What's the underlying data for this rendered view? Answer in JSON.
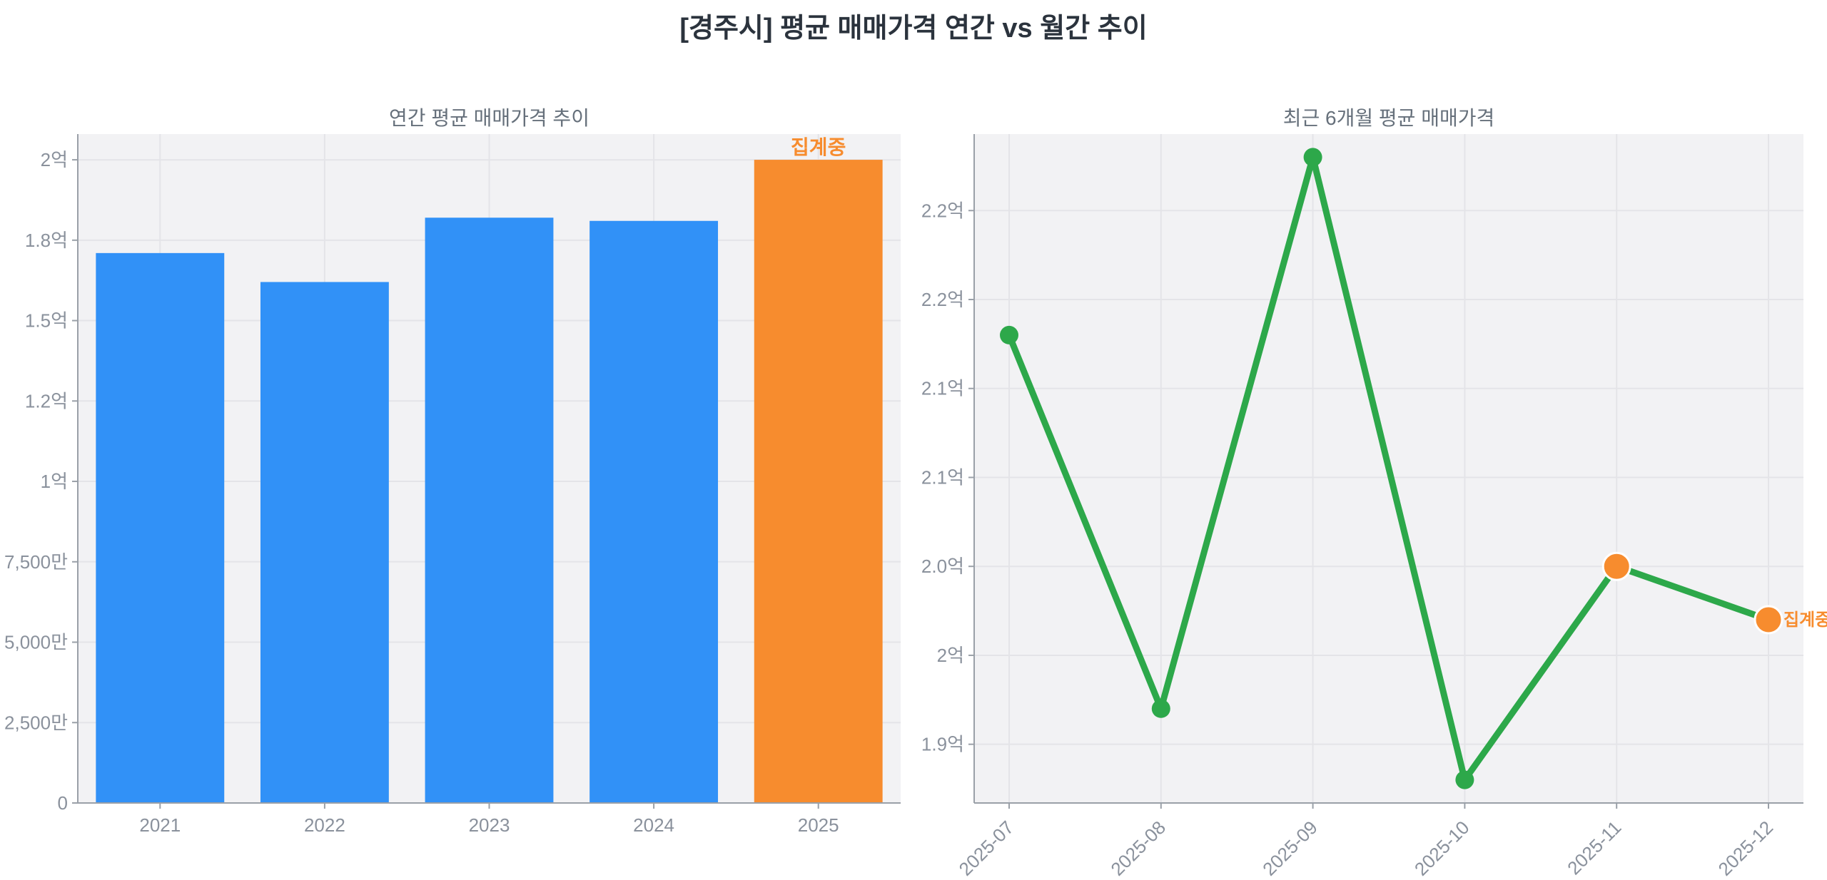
{
  "page": {
    "title": "[경주시] 평균 매매가격 연간 vs 월간 추이"
  },
  "colors": {
    "main_title_text": "#2b333d",
    "panel_title_text": "#66707b",
    "plot_background": "#f2f2f4",
    "grid": "#e4e4e8",
    "axis": "#9aa0a8",
    "tick_text": "#8a919c",
    "bar_blue": "#3191f7",
    "accent_orange": "#f78c2e",
    "line_green": "#2da84a"
  },
  "annotations": {
    "in_progress_label": "집계중"
  },
  "chart_data": [
    {
      "id": "annual",
      "type": "bar",
      "title": "연간 평균 매매가격 추이",
      "categories": [
        "2021",
        "2022",
        "2023",
        "2024",
        "2025"
      ],
      "values": [
        1.71,
        1.62,
        1.82,
        1.81,
        2.0
      ],
      "value_unit": "억원 (1억 = 100,000,000 KRW)",
      "bar_colors": [
        "#3191f7",
        "#3191f7",
        "#3191f7",
        "#3191f7",
        "#f78c2e"
      ],
      "annotation": {
        "text": "집계중",
        "category_index": 4,
        "color": "#f78c2e"
      },
      "xlabel": "",
      "ylabel": "",
      "ylim": [
        0,
        2.08
      ],
      "yticks": [
        {
          "value": 0,
          "label": "0"
        },
        {
          "value": 0.25,
          "label": "2,500만"
        },
        {
          "value": 0.5,
          "label": "5,000만"
        },
        {
          "value": 0.75,
          "label": "7,500만"
        },
        {
          "value": 1.0,
          "label": "1억"
        },
        {
          "value": 1.25,
          "label": "1.2억"
        },
        {
          "value": 1.5,
          "label": "1.5억"
        },
        {
          "value": 1.75,
          "label": "1.8억"
        },
        {
          "value": 2.0,
          "label": "2억"
        }
      ],
      "grid": true,
      "legend": "none"
    },
    {
      "id": "monthly",
      "type": "line",
      "title": "최근 6개월 평균 매매가격",
      "categories": [
        "2025-07",
        "2025-08",
        "2025-09",
        "2025-10",
        "2025-11",
        "2025-12"
      ],
      "values": [
        2.18,
        1.97,
        2.28,
        1.93,
        2.05,
        2.02
      ],
      "value_unit": "억원 (1억 = 100,000,000 KRW)",
      "line_color": "#2da84a",
      "marker_colors": [
        "#2da84a",
        "#2da84a",
        "#2da84a",
        "#2da84a",
        "#f78c2e",
        "#f78c2e"
      ],
      "annotation": {
        "text": "집계중",
        "category_index": 5,
        "color": "#f78c2e"
      },
      "xlabel": "",
      "ylabel": "",
      "ylim": [
        1.917,
        2.293
      ],
      "yticks": [
        {
          "value": 1.95,
          "label": "1.9억"
        },
        {
          "value": 2.0,
          "label": "2억"
        },
        {
          "value": 2.05,
          "label": "2.0억"
        },
        {
          "value": 2.1,
          "label": "2.1억"
        },
        {
          "value": 2.15,
          "label": "2.1억"
        },
        {
          "value": 2.2,
          "label": "2.2억"
        },
        {
          "value": 2.25,
          "label": "2.2억"
        }
      ],
      "grid": true,
      "legend": "none",
      "x_tick_rotation": -45
    }
  ]
}
